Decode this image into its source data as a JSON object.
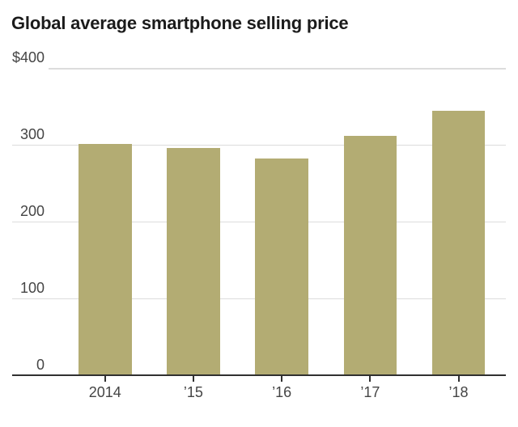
{
  "title": "Global average smartphone selling price",
  "colors": {
    "background": "#ffffff",
    "bar": "#b3ac73",
    "gridline": "#dcdcdc",
    "axis": "#303030",
    "title_text": "#1b1b1b",
    "tick_text": "#454545"
  },
  "chart_data": {
    "type": "bar",
    "title": "Global average smartphone selling price",
    "categories": [
      "2014",
      "’15",
      "’16",
      "’17",
      "’18"
    ],
    "values": [
      301,
      296,
      282,
      311,
      344
    ],
    "xlabel": "",
    "ylabel": "",
    "unit": "$",
    "ylim": [
      0,
      400
    ],
    "yticks": [
      0,
      100,
      200,
      300,
      400
    ],
    "ytick_labels": [
      "0",
      "100",
      "200",
      "300",
      "$400"
    ],
    "grid": true,
    "legend": false
  }
}
